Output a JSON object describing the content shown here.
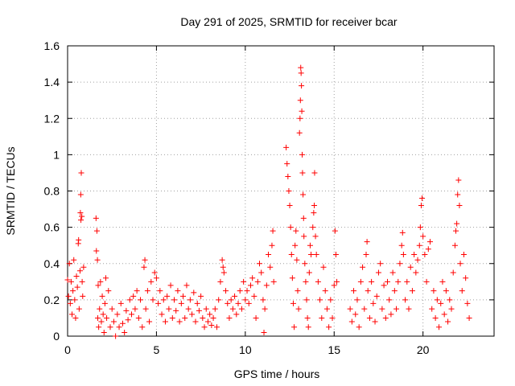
{
  "chart_data": {
    "type": "scatter",
    "title": "Day 291 of 2025, SRMTID for receiver bcar",
    "xlabel": "GPS time / hours",
    "ylabel": "SRMTID / TECUs",
    "xlim": [
      0,
      24
    ],
    "ylim": [
      0,
      1.6
    ],
    "xticks": [
      0,
      5,
      10,
      15,
      20
    ],
    "xtick_labels": [
      "0",
      "5",
      "10",
      "15",
      "20"
    ],
    "yticks": [
      0,
      0.2,
      0.4,
      0.6,
      0.8,
      1.0,
      1.2,
      1.4,
      1.6
    ],
    "ytick_labels": [
      "0",
      "0.2",
      "0.4",
      "0.6",
      "0.8",
      "1",
      "1.2",
      "1.4",
      "1.6"
    ],
    "grid": true,
    "marker": "+",
    "color": "#ff0000",
    "series": [
      {
        "name": "SRMTID",
        "points": [
          [
            0.0,
            0.31
          ],
          [
            0.05,
            0.22
          ],
          [
            0.1,
            0.4
          ],
          [
            0.15,
            0.18
          ],
          [
            0.2,
            0.3
          ],
          [
            0.25,
            0.12
          ],
          [
            0.3,
            0.25
          ],
          [
            0.35,
            0.42
          ],
          [
            0.4,
            0.2
          ],
          [
            0.45,
            0.1
          ],
          [
            0.5,
            0.33
          ],
          [
            0.55,
            0.27
          ],
          [
            0.6,
            0.51
          ],
          [
            0.62,
            0.53
          ],
          [
            0.65,
            0.15
          ],
          [
            0.7,
            0.36
          ],
          [
            0.72,
            0.68
          ],
          [
            0.74,
            0.78
          ],
          [
            0.75,
            0.64
          ],
          [
            0.77,
            0.9
          ],
          [
            0.8,
            0.66
          ],
          [
            0.82,
            0.3
          ],
          [
            0.85,
            0.22
          ],
          [
            0.9,
            0.38
          ],
          [
            1.6,
            0.65
          ],
          [
            1.62,
            0.47
          ],
          [
            1.65,
            0.58
          ],
          [
            1.68,
            0.42
          ],
          [
            1.7,
            0.1
          ],
          [
            1.72,
            0.28
          ],
          [
            1.75,
            0.05
          ],
          [
            1.8,
            0.15
          ],
          [
            1.85,
            0.3
          ],
          [
            1.9,
            0.08
          ],
          [
            1.95,
            0.22
          ],
          [
            2.0,
            0.12
          ],
          [
            2.05,
            0.02
          ],
          [
            2.1,
            0.18
          ],
          [
            2.15,
            0.32
          ],
          [
            2.2,
            0.1
          ],
          [
            2.3,
            0.25
          ],
          [
            2.4,
            0.05
          ],
          [
            2.5,
            0.15
          ],
          [
            2.6,
            0.08
          ],
          [
            2.7,
            0.0
          ],
          [
            2.8,
            0.12
          ],
          [
            2.9,
            0.05
          ],
          [
            3.0,
            0.18
          ],
          [
            3.1,
            0.07
          ],
          [
            3.2,
            0.02
          ],
          [
            3.3,
            0.14
          ],
          [
            3.4,
            0.09
          ],
          [
            3.5,
            0.2
          ],
          [
            3.6,
            0.12
          ],
          [
            3.7,
            0.22
          ],
          [
            3.8,
            0.15
          ],
          [
            3.9,
            0.25
          ],
          [
            4.0,
            0.1
          ],
          [
            4.1,
            0.2
          ],
          [
            4.2,
            0.05
          ],
          [
            4.3,
            0.38
          ],
          [
            4.35,
            0.42
          ],
          [
            4.4,
            0.15
          ],
          [
            4.5,
            0.25
          ],
          [
            4.6,
            0.08
          ],
          [
            4.7,
            0.3
          ],
          [
            4.8,
            0.2
          ],
          [
            4.9,
            0.35
          ],
          [
            5.0,
            0.32
          ],
          [
            5.1,
            0.18
          ],
          [
            5.2,
            0.25
          ],
          [
            5.3,
            0.12
          ],
          [
            5.4,
            0.2
          ],
          [
            5.5,
            0.08
          ],
          [
            5.6,
            0.22
          ],
          [
            5.7,
            0.15
          ],
          [
            5.8,
            0.28
          ],
          [
            5.9,
            0.1
          ],
          [
            6.0,
            0.2
          ],
          [
            6.1,
            0.14
          ],
          [
            6.2,
            0.25
          ],
          [
            6.3,
            0.08
          ],
          [
            6.4,
            0.18
          ],
          [
            6.5,
            0.22
          ],
          [
            6.6,
            0.1
          ],
          [
            6.7,
            0.28
          ],
          [
            6.8,
            0.15
          ],
          [
            6.9,
            0.2
          ],
          [
            7.0,
            0.12
          ],
          [
            7.1,
            0.24
          ],
          [
            7.2,
            0.08
          ],
          [
            7.3,
            0.18
          ],
          [
            7.4,
            0.14
          ],
          [
            7.5,
            0.22
          ],
          [
            7.6,
            0.1
          ],
          [
            7.7,
            0.05
          ],
          [
            7.8,
            0.15
          ],
          [
            7.9,
            0.08
          ],
          [
            8.0,
            0.12
          ],
          [
            8.1,
            0.06
          ],
          [
            8.2,
            0.1
          ],
          [
            8.3,
            0.15
          ],
          [
            8.4,
            0.05
          ],
          [
            8.5,
            0.2
          ],
          [
            8.6,
            0.3
          ],
          [
            8.7,
            0.42
          ],
          [
            8.75,
            0.38
          ],
          [
            8.8,
            0.35
          ],
          [
            8.9,
            0.25
          ],
          [
            9.0,
            0.18
          ],
          [
            9.1,
            0.1
          ],
          [
            9.2,
            0.2
          ],
          [
            9.3,
            0.15
          ],
          [
            9.4,
            0.22
          ],
          [
            9.5,
            0.12
          ],
          [
            9.6,
            0.18
          ],
          [
            9.7,
            0.25
          ],
          [
            9.8,
            0.15
          ],
          [
            9.9,
            0.3
          ],
          [
            10.0,
            0.2
          ],
          [
            10.1,
            0.25
          ],
          [
            10.2,
            0.18
          ],
          [
            10.3,
            0.28
          ],
          [
            10.4,
            0.32
          ],
          [
            10.5,
            0.22
          ],
          [
            10.6,
            0.1
          ],
          [
            10.7,
            0.3
          ],
          [
            10.8,
            0.4
          ],
          [
            10.9,
            0.35
          ],
          [
            11.0,
            0.2
          ],
          [
            11.05,
            0.02
          ],
          [
            11.1,
            0.15
          ],
          [
            11.2,
            0.28
          ],
          [
            11.3,
            0.45
          ],
          [
            11.4,
            0.38
          ],
          [
            11.5,
            0.5
          ],
          [
            11.55,
            0.58
          ],
          [
            11.6,
            0.3
          ],
          [
            12.3,
            1.04
          ],
          [
            12.35,
            0.95
          ],
          [
            12.4,
            0.88
          ],
          [
            12.45,
            0.8
          ],
          [
            12.5,
            0.72
          ],
          [
            12.55,
            0.6
          ],
          [
            12.6,
            0.45
          ],
          [
            12.65,
            0.32
          ],
          [
            12.7,
            0.18
          ],
          [
            12.75,
            0.05
          ],
          [
            12.8,
            0.5
          ],
          [
            12.85,
            0.58
          ],
          [
            12.9,
            0.42
          ],
          [
            12.95,
            0.25
          ],
          [
            13.0,
            0.15
          ],
          [
            13.05,
            1.12
          ],
          [
            13.08,
            1.2
          ],
          [
            13.1,
            1.3
          ],
          [
            13.12,
            1.48
          ],
          [
            13.14,
            1.45
          ],
          [
            13.16,
            1.38
          ],
          [
            13.18,
            1.24
          ],
          [
            13.2,
            1.0
          ],
          [
            13.22,
            0.9
          ],
          [
            13.25,
            0.78
          ],
          [
            13.28,
            0.65
          ],
          [
            13.3,
            0.55
          ],
          [
            13.35,
            0.4
          ],
          [
            13.4,
            0.3
          ],
          [
            13.45,
            0.2
          ],
          [
            13.5,
            0.1
          ],
          [
            13.55,
            0.05
          ],
          [
            13.6,
            0.35
          ],
          [
            13.65,
            0.5
          ],
          [
            13.7,
            0.45
          ],
          [
            13.8,
            0.6
          ],
          [
            13.85,
            0.68
          ],
          [
            13.88,
            0.72
          ],
          [
            13.9,
            0.9
          ],
          [
            13.95,
            0.55
          ],
          [
            14.0,
            0.45
          ],
          [
            14.1,
            0.3
          ],
          [
            14.2,
            0.2
          ],
          [
            14.3,
            0.1
          ],
          [
            14.4,
            0.38
          ],
          [
            14.5,
            0.25
          ],
          [
            14.6,
            0.15
          ],
          [
            14.7,
            0.05
          ],
          [
            14.8,
            0.2
          ],
          [
            14.9,
            0.1
          ],
          [
            15.0,
            0.28
          ],
          [
            15.05,
            0.58
          ],
          [
            15.1,
            0.45
          ],
          [
            15.15,
            0.3
          ],
          [
            15.9,
            0.15
          ],
          [
            16.0,
            0.08
          ],
          [
            16.1,
            0.25
          ],
          [
            16.2,
            0.12
          ],
          [
            16.3,
            0.2
          ],
          [
            16.4,
            0.05
          ],
          [
            16.5,
            0.3
          ],
          [
            16.6,
            0.38
          ],
          [
            16.7,
            0.15
          ],
          [
            16.8,
            0.45
          ],
          [
            16.85,
            0.52
          ],
          [
            16.9,
            0.25
          ],
          [
            17.0,
            0.1
          ],
          [
            17.1,
            0.3
          ],
          [
            17.2,
            0.18
          ],
          [
            17.3,
            0.08
          ],
          [
            17.4,
            0.22
          ],
          [
            17.5,
            0.35
          ],
          [
            17.6,
            0.4
          ],
          [
            17.7,
            0.15
          ],
          [
            17.8,
            0.28
          ],
          [
            17.9,
            0.1
          ],
          [
            18.0,
            0.3
          ],
          [
            18.1,
            0.2
          ],
          [
            18.2,
            0.12
          ],
          [
            18.3,
            0.35
          ],
          [
            18.4,
            0.25
          ],
          [
            18.5,
            0.15
          ],
          [
            18.6,
            0.3
          ],
          [
            18.7,
            0.4
          ],
          [
            18.8,
            0.5
          ],
          [
            18.85,
            0.57
          ],
          [
            18.9,
            0.45
          ],
          [
            19.0,
            0.2
          ],
          [
            19.1,
            0.3
          ],
          [
            19.2,
            0.15
          ],
          [
            19.3,
            0.38
          ],
          [
            19.4,
            0.25
          ],
          [
            19.5,
            0.45
          ],
          [
            19.6,
            0.35
          ],
          [
            19.7,
            0.42
          ],
          [
            19.8,
            0.5
          ],
          [
            19.85,
            0.6
          ],
          [
            19.9,
            0.72
          ],
          [
            19.95,
            0.76
          ],
          [
            20.0,
            0.55
          ],
          [
            20.1,
            0.45
          ],
          [
            20.2,
            0.3
          ],
          [
            20.3,
            0.48
          ],
          [
            20.4,
            0.52
          ],
          [
            20.5,
            0.15
          ],
          [
            20.6,
            0.25
          ],
          [
            20.7,
            0.1
          ],
          [
            20.8,
            0.2
          ],
          [
            20.9,
            0.05
          ],
          [
            21.0,
            0.18
          ],
          [
            21.1,
            0.3
          ],
          [
            21.2,
            0.12
          ],
          [
            21.3,
            0.25
          ],
          [
            21.4,
            0.08
          ],
          [
            21.5,
            0.2
          ],
          [
            21.6,
            0.15
          ],
          [
            21.7,
            0.35
          ],
          [
            21.8,
            0.5
          ],
          [
            21.85,
            0.58
          ],
          [
            21.9,
            0.62
          ],
          [
            21.95,
            0.78
          ],
          [
            22.0,
            0.86
          ],
          [
            22.05,
            0.72
          ],
          [
            22.1,
            0.4
          ],
          [
            22.2,
            0.25
          ],
          [
            22.3,
            0.45
          ],
          [
            22.4,
            0.32
          ],
          [
            22.5,
            0.18
          ],
          [
            22.6,
            0.1
          ]
        ]
      }
    ]
  }
}
